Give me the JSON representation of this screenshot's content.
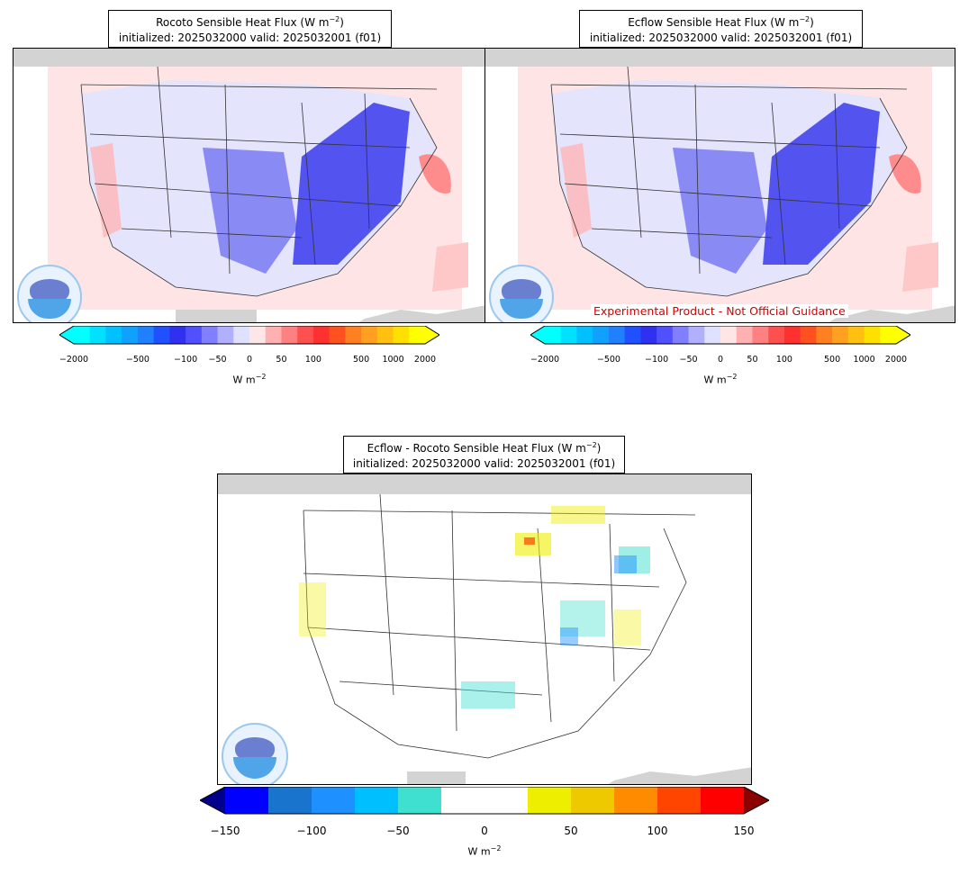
{
  "panels": [
    {
      "id": "rocoto",
      "title_line1": "Rocoto Sensible Heat Flux (W m",
      "title_line2": "initialized: 2025032000 valid: 2025032001 (f01)"
    },
    {
      "id": "ecflow",
      "title_line1": "Ecflow Sensible Heat Flux (W m",
      "title_line2": "initialized: 2025032000 valid: 2025032001 (f01)",
      "banner": "Experimental Product - Not Official Guidance"
    },
    {
      "id": "diff",
      "title_line1": "Ecflow - Rocoto Sensible Heat Flux (W m",
      "title_line2": "initialized: 2025032000 valid: 2025032001 (f01)"
    }
  ],
  "title_exp": "−2",
  "title_close": ")",
  "colorbar_top": {
    "ticks": [
      "−2000",
      "−500",
      "−100",
      "−50",
      "0",
      "50",
      "100",
      "500",
      "1000",
      "2000"
    ],
    "unit_base": "W m",
    "unit_exp": "−2",
    "colors": [
      "#00ffff",
      "#00e0ff",
      "#00c0ff",
      "#10a0ff",
      "#2080ff",
      "#2050ff",
      "#3030f0",
      "#5050ff",
      "#8080ff",
      "#b0b0ff",
      "#e0e0ff",
      "#ffe6e6",
      "#ffb0b0",
      "#ff8080",
      "#ff5050",
      "#ff3030",
      "#ff5020",
      "#ff8020",
      "#ffa020",
      "#ffc010",
      "#ffe000",
      "#ffff00"
    ],
    "extend_min_color": "#00ffff",
    "extend_max_color": "#ffff00"
  },
  "colorbar_bottom": {
    "ticks": [
      "−150",
      "−100",
      "−50",
      "0",
      "50",
      "100",
      "150"
    ],
    "unit_base": "W m",
    "unit_exp": "−2",
    "colors": [
      "#0000ff",
      "#1874cd",
      "#1e90ff",
      "#00bfff",
      "#40e0d0",
      "#ffffff",
      "#ffffff",
      "#eeee00",
      "#eec900",
      "#ff8c00",
      "#ff4500",
      "#ff0000"
    ],
    "extend_min_color": "#00008b",
    "extend_max_color": "#8b0000"
  }
}
